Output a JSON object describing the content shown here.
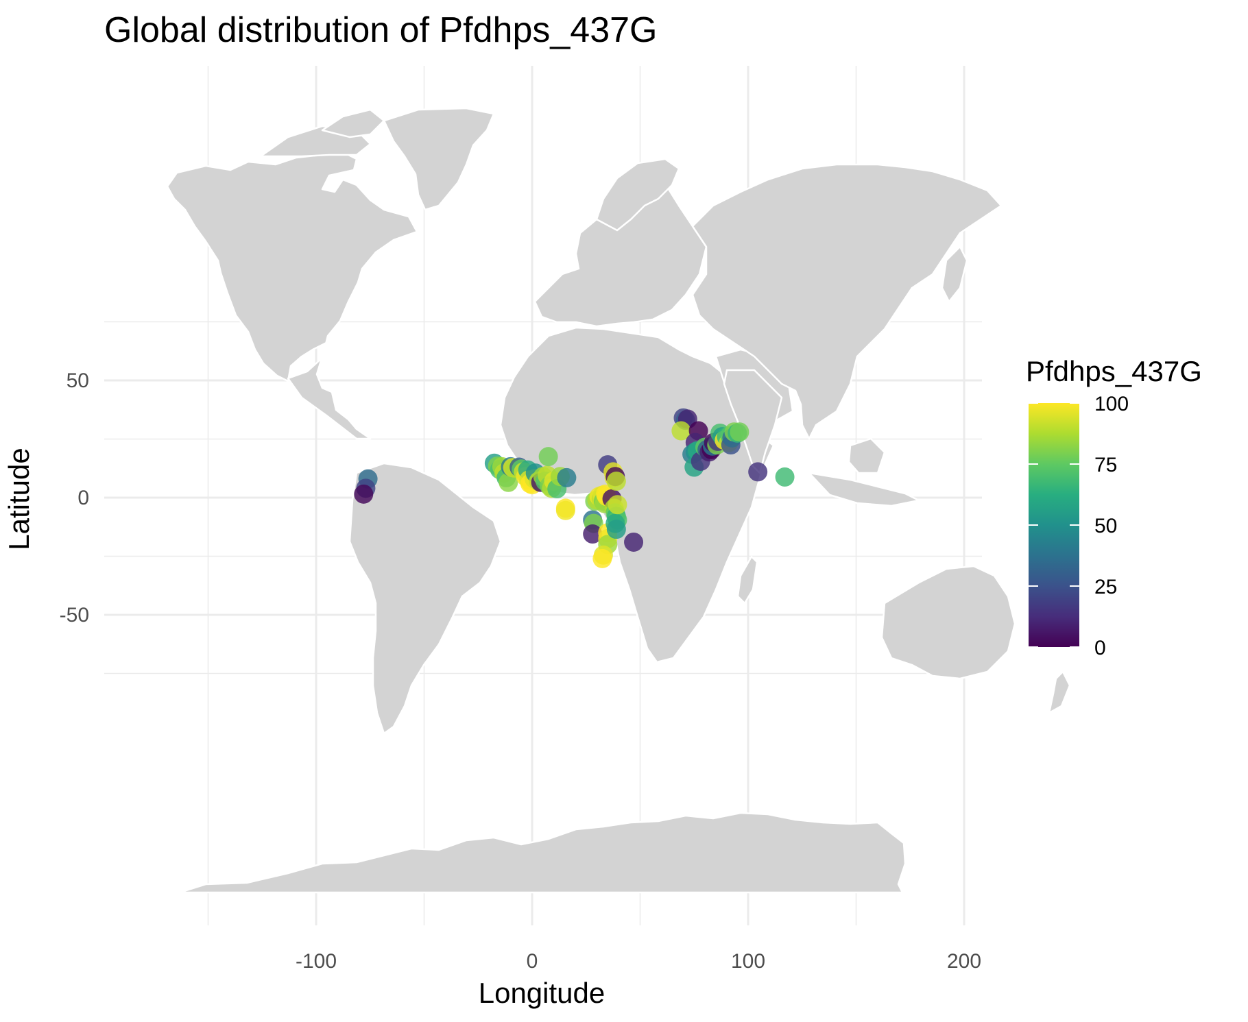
{
  "title": "Global distribution of Pfdhps_437G",
  "chart_data": {
    "type": "scatter",
    "x_label": "Longitude",
    "y_label": "Latitude",
    "xlim": [
      -150,
      200
    ],
    "ylim": [
      -90,
      85
    ],
    "x_ticks": [
      -100,
      0,
      100,
      200
    ],
    "y_ticks": [
      -50,
      0,
      50
    ],
    "grid": true,
    "basemap": "world land polygons (light grey) with white country borders",
    "land_color": "#d3d3d3",
    "border_color": "#ffffff",
    "legend": {
      "title": "Pfdhps_437G",
      "placement": "right",
      "type": "continuous colorbar (viridis)",
      "range": [
        0,
        100
      ],
      "ticks": [
        0,
        25,
        50,
        75,
        100
      ]
    },
    "points": [
      {
        "lon": -76,
        "lat": 8,
        "value": 35
      },
      {
        "lon": -77,
        "lat": 4,
        "value": 20
      },
      {
        "lon": -78,
        "lat": 1.5,
        "value": 2
      },
      {
        "lon": -17.5,
        "lat": 14.7,
        "value": 55
      },
      {
        "lon": -16,
        "lat": 13.5,
        "value": 80
      },
      {
        "lon": -15,
        "lat": 12,
        "value": 70
      },
      {
        "lon": -14,
        "lat": 13.2,
        "value": 85
      },
      {
        "lon": -13,
        "lat": 10.5,
        "value": 90
      },
      {
        "lon": -12,
        "lat": 8.5,
        "value": 68
      },
      {
        "lon": -11,
        "lat": 6.5,
        "value": 82
      },
      {
        "lon": -10,
        "lat": 13.2,
        "value": 40
      },
      {
        "lon": -9,
        "lat": 12.8,
        "value": 95
      },
      {
        "lon": -8,
        "lat": 12.5,
        "value": 88
      },
      {
        "lon": -6,
        "lat": 13.0,
        "value": 30
      },
      {
        "lon": -5,
        "lat": 12.2,
        "value": 75
      },
      {
        "lon": -4,
        "lat": 11.0,
        "value": 92
      },
      {
        "lon": -3,
        "lat": 9.0,
        "value": 98
      },
      {
        "lon": -2,
        "lat": 11.8,
        "value": 60
      },
      {
        "lon": -1.5,
        "lat": 7.5,
        "value": 95
      },
      {
        "lon": -1,
        "lat": 6.0,
        "value": 100
      },
      {
        "lon": 0,
        "lat": 5.5,
        "value": 100
      },
      {
        "lon": 1,
        "lat": 8.0,
        "value": 95
      },
      {
        "lon": 1.5,
        "lat": 10.5,
        "value": 50
      },
      {
        "lon": 3,
        "lat": 7.0,
        "value": 90
      },
      {
        "lon": 4,
        "lat": 6.5,
        "value": 6
      },
      {
        "lon": 5,
        "lat": 9.0,
        "value": 85
      },
      {
        "lon": 6,
        "lat": 7.0,
        "value": 72
      },
      {
        "lon": 7,
        "lat": 9.5,
        "value": 90
      },
      {
        "lon": 7.5,
        "lat": 17.5,
        "value": 78
      },
      {
        "lon": 8,
        "lat": 5.0,
        "value": 80
      },
      {
        "lon": 9,
        "lat": 4.0,
        "value": 88
      },
      {
        "lon": 10,
        "lat": 7.0,
        "value": 95
      },
      {
        "lon": 11.5,
        "lat": 3.8,
        "value": 70
      },
      {
        "lon": 13,
        "lat": 9.0,
        "value": 85
      },
      {
        "lon": 16,
        "lat": 8.5,
        "value": 42
      },
      {
        "lon": 15.5,
        "lat": -4.5,
        "value": 100
      },
      {
        "lon": 15.5,
        "lat": -5.5,
        "value": 98
      },
      {
        "lon": 28,
        "lat": -9.5,
        "value": 38
      },
      {
        "lon": 28.5,
        "lat": -11.0,
        "value": 80
      },
      {
        "lon": 28,
        "lat": -15.5,
        "value": 8
      },
      {
        "lon": 29,
        "lat": -1.5,
        "value": 80
      },
      {
        "lon": 30,
        "lat": -1.0,
        "value": 88
      },
      {
        "lon": 31,
        "lat": 0.5,
        "value": 98
      },
      {
        "lon": 32,
        "lat": -0.5,
        "value": 90
      },
      {
        "lon": 32.5,
        "lat": 1.0,
        "value": 95
      },
      {
        "lon": 33,
        "lat": -1.5,
        "value": 78
      },
      {
        "lon": 33.5,
        "lat": -2.5,
        "value": 85
      },
      {
        "lon": 34,
        "lat": 1.5,
        "value": 100
      },
      {
        "lon": 34.5,
        "lat": 0.5,
        "value": 100
      },
      {
        "lon": 35,
        "lat": 14.0,
        "value": 18
      },
      {
        "lon": 35,
        "lat": -15.0,
        "value": 100
      },
      {
        "lon": 35,
        "lat": -17.5,
        "value": 98
      },
      {
        "lon": 35,
        "lat": -20.0,
        "value": 85
      },
      {
        "lon": 33,
        "lat": -24.5,
        "value": 95
      },
      {
        "lon": 32.5,
        "lat": -26.0,
        "value": 100
      },
      {
        "lon": 37,
        "lat": -0.5,
        "value": 5
      },
      {
        "lon": 37.5,
        "lat": 11.0,
        "value": 96
      },
      {
        "lon": 38,
        "lat": 8.5,
        "value": 95
      },
      {
        "lon": 38.5,
        "lat": 9.0,
        "value": 2
      },
      {
        "lon": 39,
        "lat": 7.0,
        "value": 90
      },
      {
        "lon": 38,
        "lat": -4.5,
        "value": 88
      },
      {
        "lon": 38.5,
        "lat": -6.5,
        "value": 75
      },
      {
        "lon": 39,
        "lat": -8.0,
        "value": 65
      },
      {
        "lon": 39.5,
        "lat": -9.5,
        "value": 72
      },
      {
        "lon": 38.5,
        "lat": -11.0,
        "value": 60
      },
      {
        "lon": 39,
        "lat": -13.5,
        "value": 55
      },
      {
        "lon": 39.5,
        "lat": -3.0,
        "value": 92
      },
      {
        "lon": 47,
        "lat": -19,
        "value": 10
      },
      {
        "lon": 70,
        "lat": 34,
        "value": 20
      },
      {
        "lon": 71,
        "lat": 33,
        "value": 30
      },
      {
        "lon": 72,
        "lat": 33.5,
        "value": 10
      },
      {
        "lon": 69,
        "lat": 28.5,
        "value": 90
      },
      {
        "lon": 77,
        "lat": 28.5,
        "value": 0
      },
      {
        "lon": 75.5,
        "lat": 23.5,
        "value": 10
      },
      {
        "lon": 74,
        "lat": 18.5,
        "value": 42
      },
      {
        "lon": 75.5,
        "lat": 19.5,
        "value": 50
      },
      {
        "lon": 76.5,
        "lat": 20.0,
        "value": 60
      },
      {
        "lon": 75,
        "lat": 13.0,
        "value": 58
      },
      {
        "lon": 78,
        "lat": 15.5,
        "value": 15
      },
      {
        "lon": 80,
        "lat": 21.5,
        "value": 75
      },
      {
        "lon": 81,
        "lat": 20.5,
        "value": 30
      },
      {
        "lon": 82,
        "lat": 19.5,
        "value": 8
      },
      {
        "lon": 83,
        "lat": 20.5,
        "value": 0
      },
      {
        "lon": 83.5,
        "lat": 22.0,
        "value": 40
      },
      {
        "lon": 84,
        "lat": 23.5,
        "value": 2
      },
      {
        "lon": 85.5,
        "lat": 22.5,
        "value": 80
      },
      {
        "lon": 86,
        "lat": 24,
        "value": 15
      },
      {
        "lon": 87,
        "lat": 27.5,
        "value": 70
      },
      {
        "lon": 88,
        "lat": 26,
        "value": 55
      },
      {
        "lon": 89,
        "lat": 24.5,
        "value": 100
      },
      {
        "lon": 90,
        "lat": 26,
        "value": 65
      },
      {
        "lon": 91,
        "lat": 23.5,
        "value": 92
      },
      {
        "lon": 91.5,
        "lat": 26.5,
        "value": 72
      },
      {
        "lon": 92,
        "lat": 22.5,
        "value": 25
      },
      {
        "lon": 92.5,
        "lat": 25.5,
        "value": 35
      },
      {
        "lon": 93.5,
        "lat": 28,
        "value": 80
      },
      {
        "lon": 95,
        "lat": 27.5,
        "value": 65
      },
      {
        "lon": 96,
        "lat": 28,
        "value": 78
      },
      {
        "lon": 104.5,
        "lat": 11,
        "value": 15
      },
      {
        "lon": 117,
        "lat": 8.8,
        "value": 68
      }
    ]
  }
}
